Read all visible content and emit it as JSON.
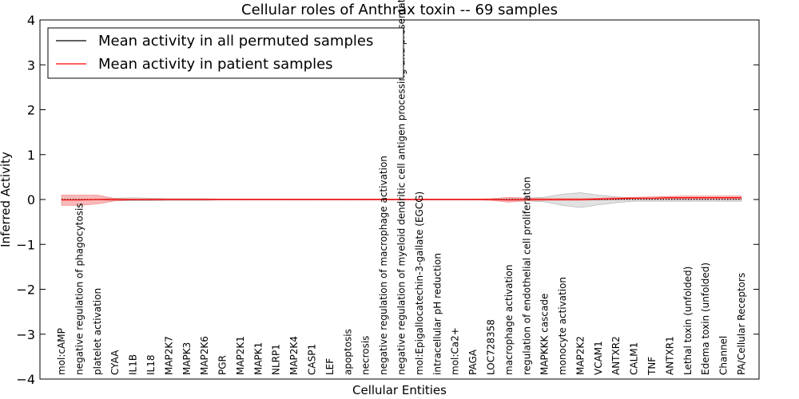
{
  "chart_data": {
    "type": "line",
    "title": "Cellular roles of Anthrax toxin -- 69 samples",
    "xlabel": "Cellular Entities",
    "ylabel": "Inferred Activity",
    "ylim": [
      -4,
      4
    ],
    "yticks": [
      -4,
      -3,
      -2,
      -1,
      0,
      1,
      2,
      3,
      4
    ],
    "ytick_labels": [
      "−4",
      "−3",
      "−2",
      "−1",
      "0",
      "1",
      "2",
      "3",
      "4"
    ],
    "grid": false,
    "legend_position": "top-left",
    "categories": [
      "mol:cAMP",
      "negative regulation of phagocytosis",
      "platelet activation",
      "CYAA",
      "IL1B",
      "IL18",
      "MAP2K7",
      "MAPK3",
      "MAP2K6",
      "PGR",
      "MAP2K1",
      "MAPK1",
      "NLRP1",
      "MAP2K4",
      "CASP1",
      "LEF",
      "apoptosis",
      "necrosis",
      "negative regulation of macrophage activation",
      "negative regulation of myeloid dendritic cell antigen processing and presentation",
      "mol:Epigallocatechin-3-gallate (EGCG)",
      "intracellular pH reduction",
      "mol:Ca2+",
      "PAGA",
      "LOC728358",
      "macrophage activation",
      "regulation of endothelial cell proliferation",
      "MAPKKK cascade",
      "monocyte activation",
      "MAP2K2",
      "VCAM1",
      "ANTXR2",
      "CALM1",
      "TNF",
      "ANTXR1",
      "Lethal toxin (unfolded)",
      "Edema toxin (unfolded)",
      "Channel",
      "PA/Cellular Receptors"
    ],
    "series": [
      {
        "name": "Mean activity in all permuted samples",
        "color": "#000000",
        "style": "dotted",
        "values": [
          0,
          0,
          0,
          0,
          0,
          0,
          0,
          0,
          0,
          0,
          0,
          0,
          0,
          0,
          0,
          0,
          0,
          0,
          0,
          0,
          0,
          0,
          0,
          0,
          0,
          0,
          0,
          0,
          0,
          0,
          0,
          0,
          0,
          0,
          0,
          0,
          0,
          0,
          0
        ],
        "band_upper": [
          0,
          0,
          0,
          0.03,
          0.04,
          0.03,
          0.02,
          0.02,
          0.02,
          0.01,
          0.01,
          0.01,
          0.01,
          0.01,
          0.01,
          0.01,
          0.01,
          0.01,
          0.01,
          0.01,
          0.01,
          0.01,
          0.01,
          0.01,
          0.01,
          0.02,
          0.03,
          0.05,
          0.12,
          0.15,
          0.1,
          0.06,
          0.03,
          0.03,
          0.03,
          0.03,
          0.03,
          0.03,
          0.03
        ],
        "band_lower": [
          0,
          0,
          0,
          -0.03,
          -0.03,
          -0.03,
          -0.02,
          -0.02,
          -0.02,
          -0.01,
          -0.01,
          -0.01,
          -0.01,
          -0.01,
          -0.01,
          -0.01,
          -0.01,
          -0.01,
          -0.01,
          -0.01,
          -0.01,
          -0.01,
          -0.01,
          -0.01,
          -0.01,
          -0.02,
          -0.03,
          -0.05,
          -0.13,
          -0.18,
          -0.12,
          -0.07,
          -0.04,
          -0.04,
          -0.04,
          -0.04,
          -0.04,
          -0.04,
          -0.04
        ],
        "band_color": "#aaaaaa"
      },
      {
        "name": "Mean activity in patient samples",
        "color": "#ff0000",
        "style": "solid",
        "values": [
          -0.01,
          -0.01,
          0,
          0,
          0,
          0,
          0,
          0,
          0,
          0,
          0,
          0,
          0,
          0,
          0,
          0,
          0,
          0,
          0,
          0,
          0,
          0,
          0,
          0,
          0,
          -0.01,
          0,
          0,
          0,
          0,
          0.01,
          0.02,
          0.03,
          0.03,
          0.04,
          0.04,
          0.04,
          0.04,
          0.04
        ],
        "band_upper": [
          0.1,
          0.1,
          0.1,
          0.02,
          0.01,
          0.01,
          0.01,
          0.01,
          0.01,
          0.01,
          0.01,
          0.01,
          0.01,
          0.01,
          0.01,
          0.01,
          0.01,
          0.01,
          0.01,
          0.01,
          0.01,
          0.01,
          0.01,
          0.01,
          0.02,
          0.05,
          0.03,
          0.02,
          0.02,
          0.02,
          0.03,
          0.04,
          0.05,
          0.06,
          0.07,
          0.08,
          0.08,
          0.08,
          0.08
        ],
        "band_lower": [
          -0.13,
          -0.13,
          -0.1,
          -0.03,
          -0.01,
          -0.01,
          -0.01,
          -0.01,
          -0.01,
          -0.01,
          -0.01,
          -0.01,
          -0.01,
          -0.01,
          -0.01,
          -0.01,
          -0.01,
          -0.01,
          -0.01,
          -0.01,
          -0.01,
          -0.01,
          -0.01,
          -0.01,
          -0.02,
          -0.06,
          -0.03,
          -0.02,
          -0.02,
          -0.02,
          -0.01,
          0,
          0.01,
          0.01,
          0.01,
          0.01,
          0.01,
          0.01,
          0.01
        ],
        "band_color": "#f08080"
      }
    ]
  }
}
